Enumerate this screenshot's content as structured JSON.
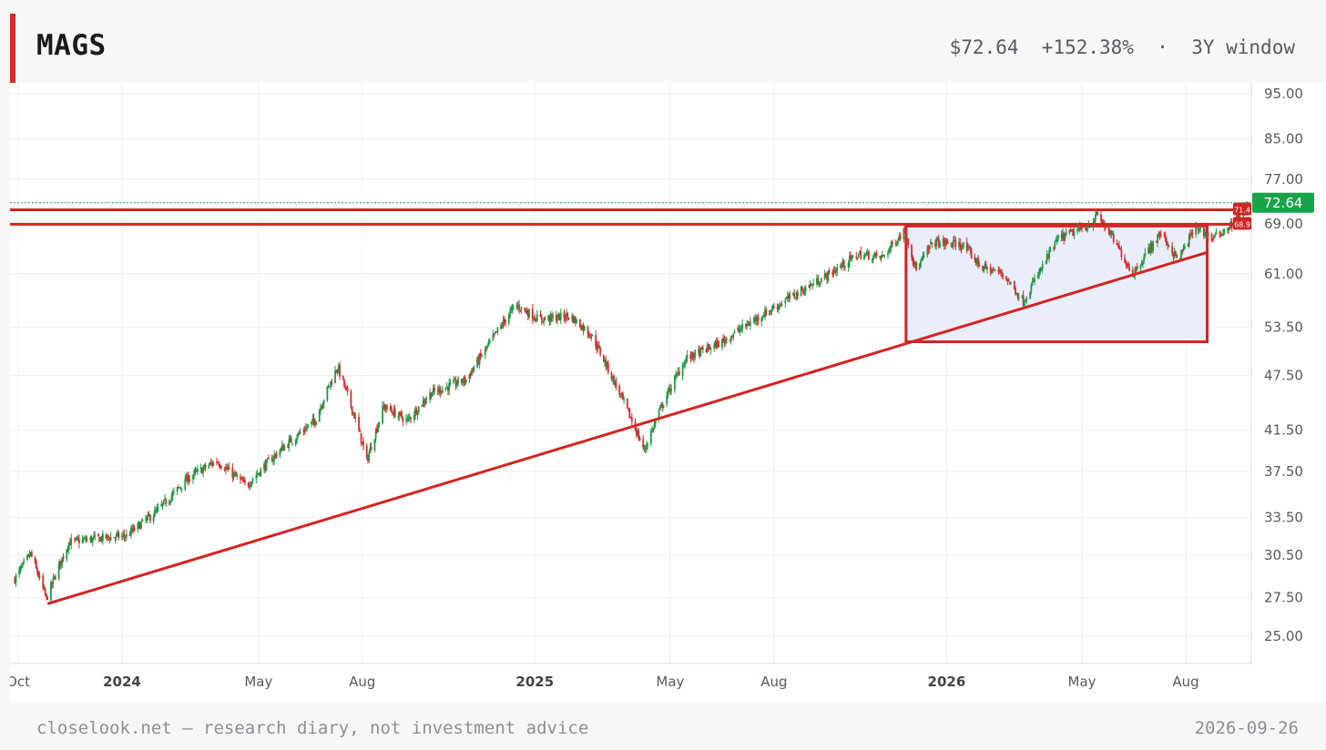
{
  "header": {
    "ticker": "MAGS",
    "price": "$72.64",
    "change": "+152.38%",
    "separator": "·",
    "window": "3Y window"
  },
  "footer": {
    "source": "closelook.net — research diary, not investment advice",
    "date": "2026-09-26"
  },
  "colors": {
    "accent": "#d92a2a",
    "up": "#1e9a45",
    "down": "#d92a2a",
    "annotation": "#d42323",
    "box_fill": "#e6ebfb",
    "price_tag": "#17a34a"
  },
  "chart_data": {
    "type": "candlestick",
    "y_scale": "log",
    "ylim": [
      23.5,
      98
    ],
    "y_ticks": [
      "95.00",
      "85.00",
      "77.00",
      "69.00",
      "61.00",
      "53.50",
      "47.50",
      "41.50",
      "37.50",
      "33.50",
      "30.50",
      "27.50",
      "25.00"
    ],
    "x_ticks": [
      {
        "label": "Oct",
        "date": "2023-10-01",
        "bold": false
      },
      {
        "label": "2024",
        "date": "2024-01-01",
        "bold": true
      },
      {
        "label": "May",
        "date": "2024-05-01",
        "bold": false
      },
      {
        "label": "Aug",
        "date": "2024-08-01",
        "bold": false
      },
      {
        "label": "2025",
        "date": "2025-01-01",
        "bold": true
      },
      {
        "label": "May",
        "date": "2025-05-01",
        "bold": false
      },
      {
        "label": "Aug",
        "date": "2025-08-01",
        "bold": false
      },
      {
        "label": "2026",
        "date": "2026-01-01",
        "bold": true
      },
      {
        "label": "May",
        "date": "2026-05-01",
        "bold": false
      },
      {
        "label": "Aug",
        "date": "2026-08-01",
        "bold": false
      }
    ],
    "grid": true,
    "last_price": {
      "value": 72.64,
      "label": "72.64"
    },
    "price_path": [
      [
        "2023-09-28",
        28.8
      ],
      [
        "2023-10-12",
        30.6
      ],
      [
        "2023-10-26",
        27.4
      ],
      [
        "2023-11-15",
        31.5
      ],
      [
        "2023-12-10",
        31.8
      ],
      [
        "2024-01-05",
        32.0
      ],
      [
        "2024-02-01",
        34.0
      ],
      [
        "2024-03-01",
        37.0
      ],
      [
        "2024-03-25",
        38.5
      ],
      [
        "2024-04-20",
        36.2
      ],
      [
        "2024-05-20",
        39.5
      ],
      [
        "2024-06-20",
        42.5
      ],
      [
        "2024-07-10",
        48.5
      ],
      [
        "2024-07-25",
        43.0
      ],
      [
        "2024-08-05",
        38.5
      ],
      [
        "2024-08-20",
        44.0
      ],
      [
        "2024-09-10",
        42.5
      ],
      [
        "2024-10-01",
        45.5
      ],
      [
        "2024-11-01",
        47.0
      ],
      [
        "2024-11-20",
        51.0
      ],
      [
        "2024-12-15",
        56.5
      ],
      [
        "2025-01-05",
        54.5
      ],
      [
        "2025-02-01",
        55.0
      ],
      [
        "2025-02-20",
        52.5
      ],
      [
        "2025-03-15",
        46.0
      ],
      [
        "2025-04-08",
        39.5
      ],
      [
        "2025-04-25",
        44.5
      ],
      [
        "2025-05-15",
        49.5
      ],
      [
        "2025-06-15",
        51.5
      ],
      [
        "2025-07-15",
        54.5
      ],
      [
        "2025-08-15",
        57.5
      ],
      [
        "2025-09-15",
        60.5
      ],
      [
        "2025-10-15",
        64.0
      ],
      [
        "2025-11-05",
        63.5
      ],
      [
        "2025-11-25",
        68.0
      ],
      [
        "2025-12-05",
        61.5
      ],
      [
        "2025-12-20",
        66.0
      ],
      [
        "2026-01-15",
        65.5
      ],
      [
        "2026-02-01",
        62.0
      ],
      [
        "2026-02-20",
        61.0
      ],
      [
        "2026-03-10",
        57.0
      ],
      [
        "2026-03-25",
        61.5
      ],
      [
        "2026-04-10",
        66.5
      ],
      [
        "2026-05-05",
        68.5
      ],
      [
        "2026-05-15",
        70.5
      ],
      [
        "2026-05-25",
        67.5
      ],
      [
        "2026-06-15",
        61.0
      ],
      [
        "2026-07-10",
        67.5
      ],
      [
        "2026-07-25",
        63.0
      ],
      [
        "2026-08-10",
        68.5
      ],
      [
        "2026-08-25",
        66.5
      ],
      [
        "2026-09-15",
        69.5
      ],
      [
        "2026-09-26",
        72.64
      ]
    ],
    "annotations": {
      "resistance_lines": [
        71.4,
        68.9
      ],
      "resistance_labels": [
        "71.4",
        "68.9"
      ],
      "trendline": {
        "start": {
          "date": "2023-10-28",
          "value": 27.1
        },
        "end": {
          "date": "2026-08-20",
          "value": 64.3
        }
      },
      "range_box": {
        "start": "2025-11-26",
        "end": "2026-08-20",
        "top": 68.6,
        "bottom": 51.6
      }
    }
  }
}
